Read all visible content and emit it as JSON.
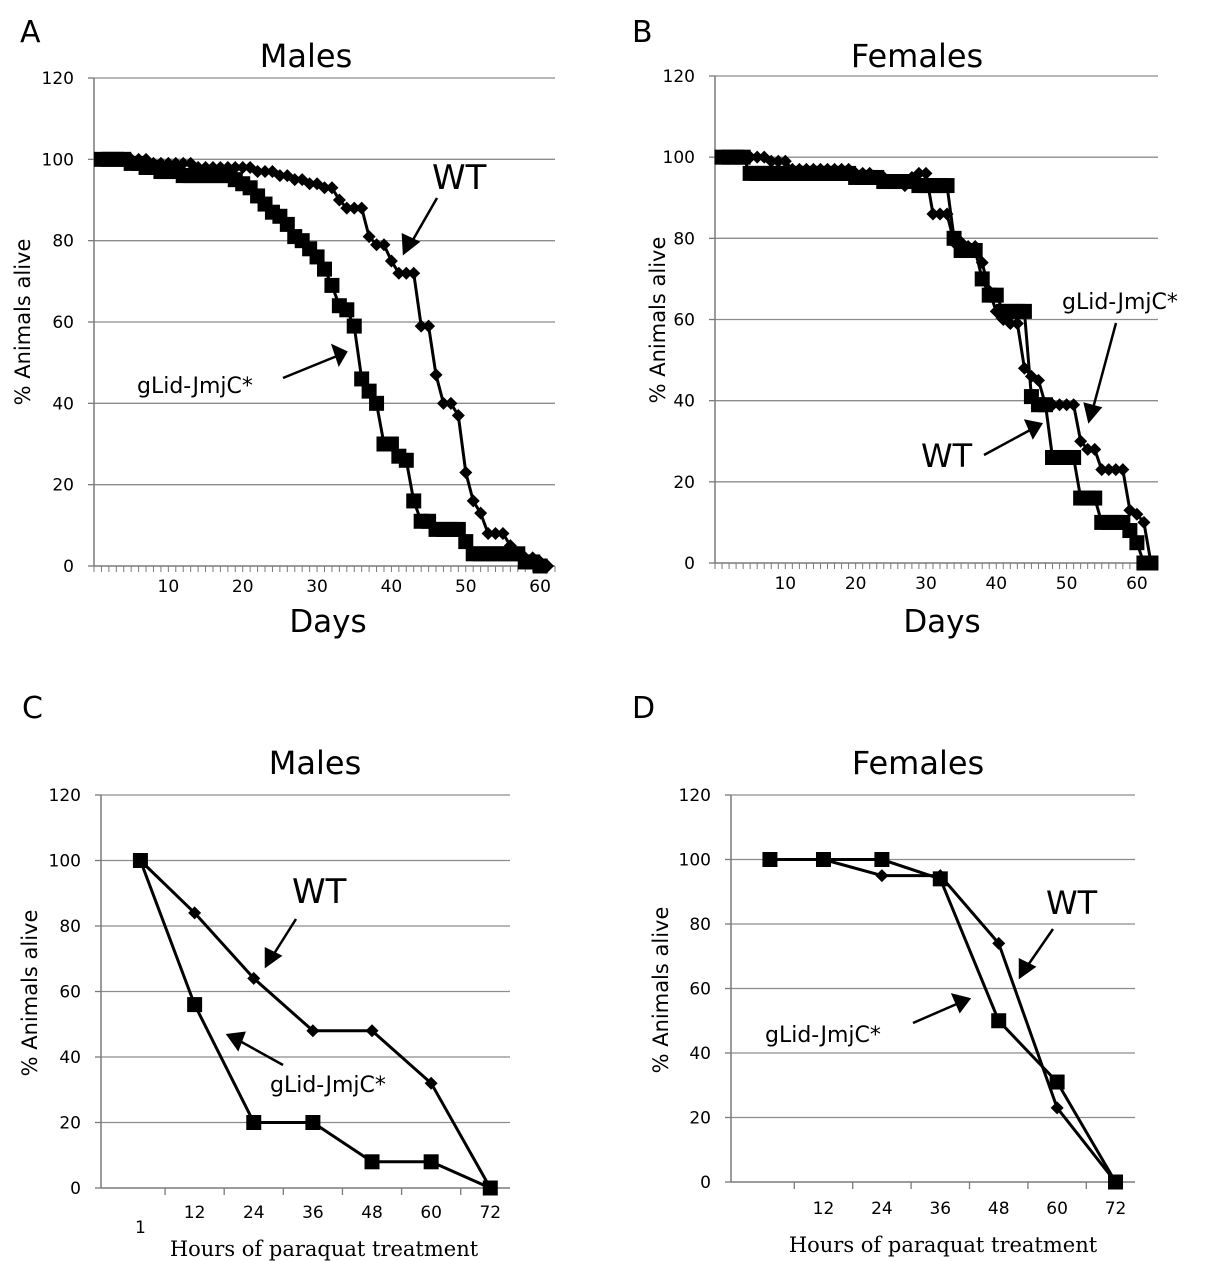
{
  "chart_data": [
    {
      "panel": "A",
      "type": "line",
      "title": "Males",
      "xlabel": "Days",
      "ylabel": "% Animals alive",
      "xlim": [
        0,
        62
      ],
      "ylim": [
        0,
        120
      ],
      "yticks": [
        0,
        20,
        40,
        60,
        80,
        100,
        120
      ],
      "xticks": [
        10,
        20,
        30,
        40,
        50,
        60
      ],
      "grid": "horizontal",
      "series": [
        {
          "name": "WT",
          "marker": "diamond",
          "x": [
            1,
            2,
            3,
            4,
            5,
            6,
            7,
            8,
            9,
            10,
            11,
            12,
            13,
            14,
            15,
            16,
            17,
            18,
            19,
            20,
            21,
            22,
            23,
            24,
            25,
            26,
            27,
            28,
            29,
            30,
            31,
            32,
            33,
            34,
            35,
            36,
            37,
            38,
            39,
            40,
            41,
            42,
            43,
            44,
            45,
            46,
            47,
            48,
            49,
            50,
            51,
            52,
            53,
            54,
            55,
            56,
            57,
            58,
            59,
            60,
            61
          ],
          "y": [
            100,
            100,
            100,
            100,
            100,
            100,
            100,
            99,
            99,
            99,
            99,
            99,
            99,
            98,
            98,
            98,
            98,
            98,
            98,
            98,
            98,
            97,
            97,
            97,
            96,
            96,
            95,
            95,
            94,
            94,
            93,
            93,
            90,
            88,
            88,
            88,
            81,
            79,
            79,
            75,
            72,
            72,
            72,
            59,
            59,
            47,
            40,
            40,
            37,
            23,
            16,
            13,
            8,
            8,
            8,
            5,
            3,
            2,
            2,
            1,
            0
          ]
        },
        {
          "name": "gLid-JmjC*",
          "marker": "square",
          "x": [
            1,
            2,
            3,
            4,
            5,
            6,
            7,
            8,
            9,
            10,
            11,
            12,
            13,
            14,
            15,
            16,
            17,
            18,
            19,
            20,
            21,
            22,
            23,
            24,
            25,
            26,
            27,
            28,
            29,
            30,
            31,
            32,
            33,
            34,
            35,
            36,
            37,
            38,
            39,
            40,
            41,
            42,
            43,
            44,
            45,
            46,
            47,
            48,
            49,
            50,
            51,
            52,
            53,
            54,
            55,
            56,
            57,
            58,
            59,
            60
          ],
          "y": [
            100,
            100,
            100,
            100,
            99,
            99,
            98,
            98,
            97,
            97,
            97,
            96,
            96,
            96,
            96,
            96,
            96,
            96,
            95,
            94,
            93,
            91,
            89,
            87,
            86,
            84,
            81,
            80,
            78,
            76,
            73,
            69,
            64,
            63,
            59,
            46,
            43,
            40,
            30,
            30,
            27,
            26,
            16,
            11,
            11,
            9,
            9,
            9,
            9,
            6,
            3,
            3,
            3,
            3,
            3,
            3,
            3,
            1,
            1,
            0
          ]
        }
      ],
      "annotations": [
        {
          "text": "WT"
        },
        {
          "text": "gLid-JmjC*"
        }
      ]
    },
    {
      "panel": "B",
      "type": "line",
      "title": "Females",
      "xlabel": "Days",
      "ylabel": "% Animals alive",
      "xlim": [
        0,
        63
      ],
      "ylim": [
        0,
        120
      ],
      "yticks": [
        0,
        20,
        40,
        60,
        80,
        100,
        120
      ],
      "xticks": [
        10,
        20,
        30,
        40,
        50,
        60
      ],
      "grid": "horizontal",
      "series": [
        {
          "name": "WT",
          "marker": "square",
          "x": [
            1,
            2,
            3,
            4,
            5,
            6,
            7,
            8,
            9,
            10,
            11,
            12,
            13,
            14,
            15,
            16,
            17,
            18,
            19,
            20,
            21,
            22,
            23,
            24,
            25,
            26,
            27,
            28,
            29,
            30,
            31,
            32,
            33,
            34,
            35,
            36,
            37,
            38,
            39,
            40,
            41,
            42,
            43,
            44,
            45,
            46,
            47,
            48,
            49,
            50,
            51,
            52,
            53,
            54,
            55,
            56,
            57,
            58,
            59,
            60,
            61,
            62
          ],
          "y": [
            100,
            100,
            100,
            100,
            96,
            96,
            96,
            96,
            96,
            96,
            96,
            96,
            96,
            96,
            96,
            96,
            96,
            96,
            96,
            95,
            95,
            95,
            95,
            94,
            94,
            94,
            94,
            94,
            93,
            93,
            93,
            93,
            93,
            80,
            77,
            77,
            77,
            70,
            66,
            66,
            62,
            62,
            62,
            62,
            41,
            39,
            39,
            26,
            26,
            26,
            26,
            16,
            16,
            16,
            10,
            10,
            10,
            10,
            8,
            5,
            0,
            0
          ]
        },
        {
          "name": "gLid-JmjC*",
          "marker": "diamond",
          "x": [
            1,
            2,
            3,
            4,
            5,
            6,
            7,
            8,
            9,
            10,
            11,
            12,
            13,
            14,
            15,
            16,
            17,
            18,
            19,
            20,
            21,
            22,
            23,
            24,
            25,
            26,
            27,
            28,
            29,
            30,
            31,
            32,
            33,
            34,
            35,
            36,
            37,
            38,
            39,
            40,
            41,
            42,
            43,
            44,
            45,
            46,
            47,
            48,
            49,
            50,
            51,
            52,
            53,
            54,
            55,
            56,
            57,
            58,
            59,
            60,
            61,
            62
          ],
          "y": [
            100,
            100,
            100,
            100,
            100,
            100,
            100,
            99,
            99,
            99,
            97,
            97,
            97,
            97,
            97,
            97,
            97,
            97,
            97,
            96,
            96,
            96,
            95,
            95,
            94,
            94,
            93,
            95,
            96,
            96,
            86,
            86,
            86,
            79,
            79,
            78,
            78,
            74,
            67,
            62,
            60,
            59,
            59,
            48,
            46,
            45,
            39,
            39,
            39,
            39,
            39,
            30,
            28,
            28,
            23,
            23,
            23,
            23,
            13,
            12,
            10,
            0
          ]
        }
      ],
      "annotations": [
        {
          "text": "gLid-JmjC*"
        },
        {
          "text": "WT"
        }
      ]
    },
    {
      "panel": "C",
      "type": "line",
      "title": "Males",
      "xlabel": "Hours of paraquat treatment",
      "ylabel": "% Animals alive",
      "xlim": [
        -7,
        76
      ],
      "ylim": [
        0,
        120
      ],
      "yticks": [
        0,
        20,
        40,
        60,
        80,
        100,
        120
      ],
      "xticks": [
        1,
        12,
        24,
        36,
        48,
        60,
        72
      ],
      "grid": "horizontal",
      "series": [
        {
          "name": "WT",
          "marker": "diamond",
          "x": [
            1,
            12,
            24,
            36,
            48,
            60,
            72
          ],
          "y": [
            100,
            84,
            64,
            48,
            48,
            32,
            0
          ]
        },
        {
          "name": "gLid-JmjC*",
          "marker": "square",
          "x": [
            1,
            12,
            24,
            36,
            48,
            60,
            72
          ],
          "y": [
            100,
            56,
            20,
            20,
            8,
            8,
            0
          ]
        }
      ],
      "annotations": [
        {
          "text": "WT"
        },
        {
          "text": "gLid-JmjC*"
        }
      ]
    },
    {
      "panel": "D",
      "type": "line",
      "title": "Females",
      "xlabel": "Hours of paraquat treatment",
      "ylabel": "% Animals alive",
      "xlim": [
        -7,
        76
      ],
      "ylim": [
        0,
        120
      ],
      "yticks": [
        0,
        20,
        40,
        60,
        80,
        100,
        120
      ],
      "xticks": [
        12,
        24,
        36,
        48,
        60,
        72
      ],
      "grid": "horizontal",
      "series": [
        {
          "name": "WT",
          "marker": "diamond",
          "x": [
            1,
            12,
            24,
            36,
            48,
            60,
            72
          ],
          "y": [
            100,
            100,
            95,
            95,
            74,
            23,
            0
          ]
        },
        {
          "name": "gLid-JmjC*",
          "marker": "square",
          "x": [
            1,
            12,
            24,
            36,
            48,
            60,
            72
          ],
          "y": [
            100,
            100,
            100,
            94,
            50,
            31,
            0
          ]
        }
      ],
      "annotations": [
        {
          "text": "WT"
        },
        {
          "text": "gLid-JmjC*"
        }
      ]
    }
  ]
}
